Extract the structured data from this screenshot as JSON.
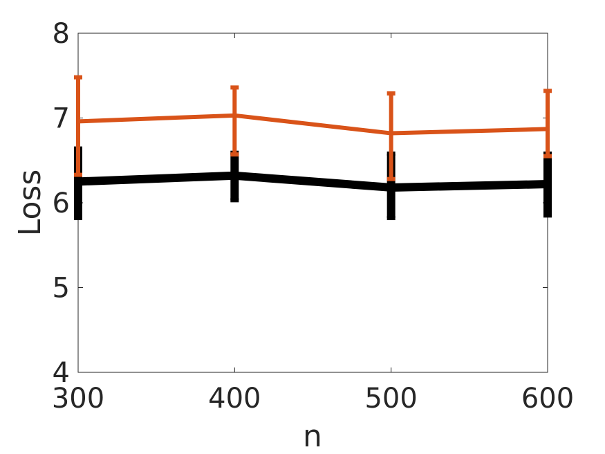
{
  "chart_data": {
    "type": "line",
    "title": "",
    "xlabel": "n",
    "ylabel": "Loss",
    "x": [
      300,
      400,
      500,
      600
    ],
    "xlim": [
      300,
      600
    ],
    "ylim": [
      4,
      8
    ],
    "xticks": [
      300,
      400,
      500,
      600
    ],
    "yticks": [
      4,
      5,
      6,
      7,
      8
    ],
    "xtick_labels": [
      "300",
      "400",
      "500",
      "600"
    ],
    "ytick_labels": [
      "4",
      "5",
      "6",
      "7",
      "8"
    ],
    "grid": false,
    "legend": "none",
    "series": [
      {
        "color": "#D95319",
        "y": [
          6.96,
          7.03,
          6.82,
          6.87
        ],
        "err_low": [
          6.33,
          6.57,
          6.28,
          6.55
        ],
        "err_high": [
          7.48,
          7.36,
          7.29,
          7.32
        ]
      },
      {
        "color": "#000000",
        "y": [
          6.25,
          6.32,
          6.18,
          6.22
        ],
        "err_low": [
          5.82,
          6.03,
          5.82,
          5.85
        ],
        "err_high": [
          6.64,
          6.59,
          6.58,
          6.58
        ]
      }
    ]
  }
}
